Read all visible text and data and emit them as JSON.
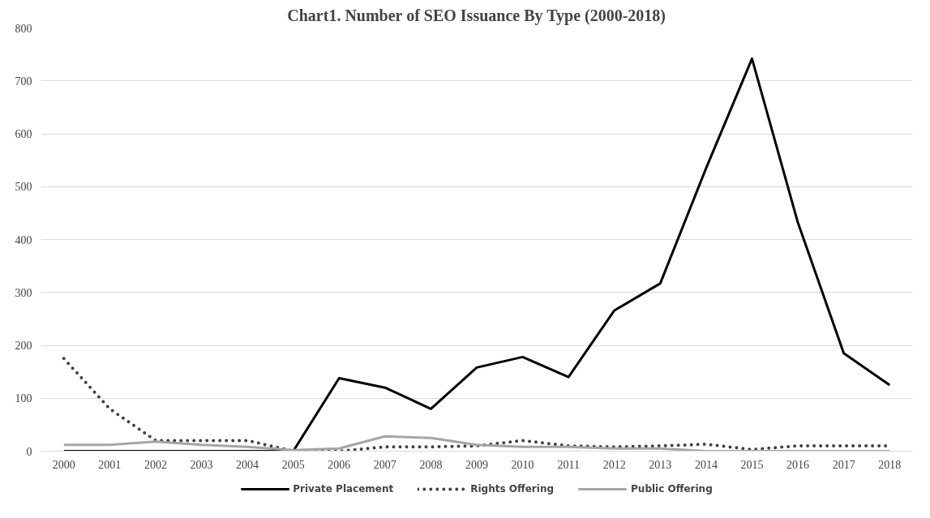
{
  "chart_data": {
    "type": "line",
    "title": "Chart1. Number of SEO Issuance By Type (2000-2018)",
    "categories": [
      "2000",
      "2001",
      "2002",
      "2003",
      "2004",
      "2005",
      "2006",
      "2007",
      "2008",
      "2009",
      "2010",
      "2011",
      "2012",
      "2013",
      "2014",
      "2015",
      "2016",
      "2017",
      "2018"
    ],
    "series": [
      {
        "name": "Private Placement",
        "color": "#000000",
        "line_style": "solid",
        "values": [
          0,
          0,
          0,
          0,
          0,
          0,
          138,
          120,
          80,
          158,
          178,
          140,
          266,
          317,
          535,
          742,
          432,
          185,
          125
        ]
      },
      {
        "name": "Rights Offering",
        "color": "#404040",
        "line_style": "dotted",
        "values": [
          175,
          80,
          20,
          20,
          20,
          0,
          0,
          8,
          8,
          10,
          20,
          10,
          8,
          10,
          13,
          3,
          10,
          10,
          10
        ]
      },
      {
        "name": "Public Offering",
        "color": "#a5a5a5",
        "line_style": "solid",
        "values": [
          12,
          12,
          18,
          12,
          8,
          2,
          5,
          28,
          25,
          12,
          8,
          8,
          5,
          5,
          0,
          0,
          0,
          0,
          0
        ]
      }
    ],
    "ylim": [
      0,
      800
    ],
    "yticks": [
      0,
      100,
      200,
      300,
      400,
      500,
      600,
      700,
      800
    ],
    "grid": "y",
    "legend": "bottom",
    "marker": "none"
  }
}
